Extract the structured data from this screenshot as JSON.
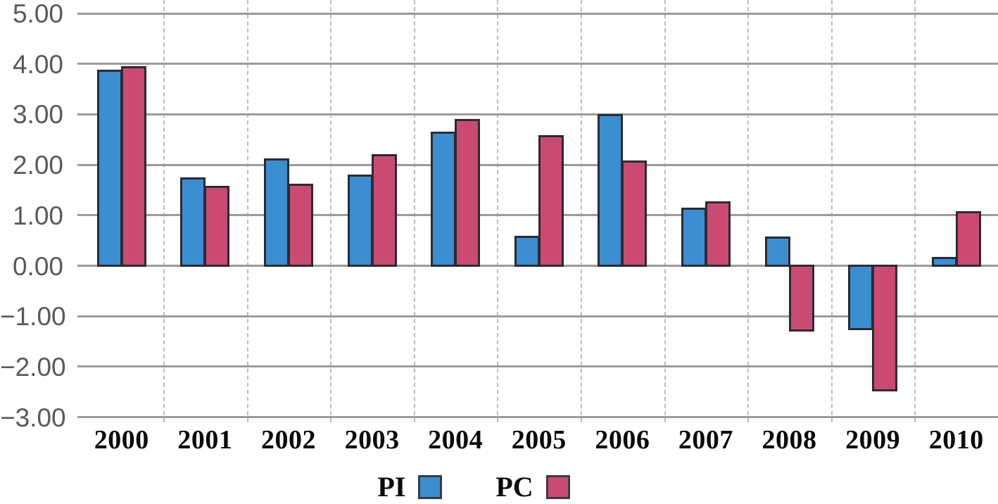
{
  "chart_data": {
    "type": "bar",
    "categories": [
      "2000",
      "2001",
      "2002",
      "2003",
      "2004",
      "2005",
      "2006",
      "2007",
      "2008",
      "2009",
      "2010"
    ],
    "series": [
      {
        "name": "PI",
        "color": "#3b8ed0",
        "values": [
          3.87,
          1.73,
          2.1,
          1.79,
          2.64,
          0.57,
          2.98,
          1.13,
          0.56,
          -1.26,
          0.16
        ]
      },
      {
        "name": "PC",
        "color": "#cb4a72",
        "values": [
          3.93,
          1.56,
          1.6,
          2.19,
          2.89,
          2.56,
          2.07,
          1.25,
          -1.28,
          -2.47,
          1.06
        ]
      }
    ],
    "ylim": [
      -3,
      5
    ],
    "yticks": [
      {
        "value": 5,
        "label": "5.00"
      },
      {
        "value": 4,
        "label": "4.00"
      },
      {
        "value": 3,
        "label": "3.00"
      },
      {
        "value": 2,
        "label": "2.00"
      },
      {
        "value": 1,
        "label": "1.00"
      },
      {
        "value": 0,
        "label": "0.00"
      },
      {
        "value": -1,
        "label": "−1.00"
      },
      {
        "value": -2,
        "label": "−2.00"
      },
      {
        "value": -3,
        "label": "−3.00"
      }
    ],
    "grid": {
      "horizontal": "solid",
      "vertical": "dashed"
    },
    "legend_position": "bottom"
  },
  "colors": {
    "pi": "#3b8ed0",
    "pc": "#cb4a72",
    "bar_border": "#2b2b33",
    "h_grid": "#9b9b9b",
    "v_grid": "#bdbdbd",
    "y_label": "#58595b",
    "x_label": "#0a0a0a",
    "background": "#ffffff"
  }
}
